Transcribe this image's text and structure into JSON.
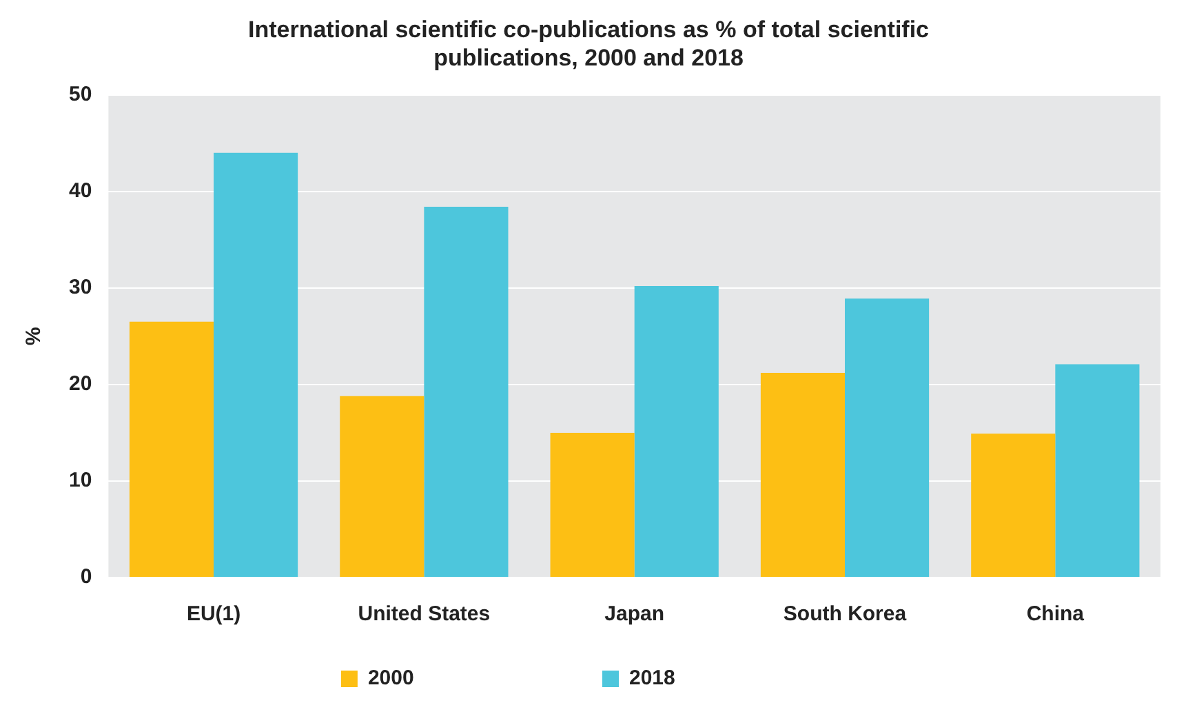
{
  "chart_data": {
    "type": "bar",
    "title": "International scientific co-publications as % of total scientific publications, 2000 and 2018",
    "ylabel": "%",
    "categories": [
      "EU(1)",
      "United States",
      "Japan",
      "South Korea",
      "China"
    ],
    "series": [
      {
        "name": "2000",
        "color": "#fdbf14",
        "values": [
          26.5,
          18.8,
          15.0,
          21.2,
          14.9
        ]
      },
      {
        "name": "2018",
        "color": "#4dc6dc",
        "values": [
          44.0,
          38.4,
          30.2,
          28.9,
          22.1
        ]
      }
    ],
    "ylim": [
      0,
      50
    ],
    "yticks": [
      0,
      10,
      20,
      30,
      40,
      50
    ],
    "grid": "y",
    "legend": "bottom"
  }
}
